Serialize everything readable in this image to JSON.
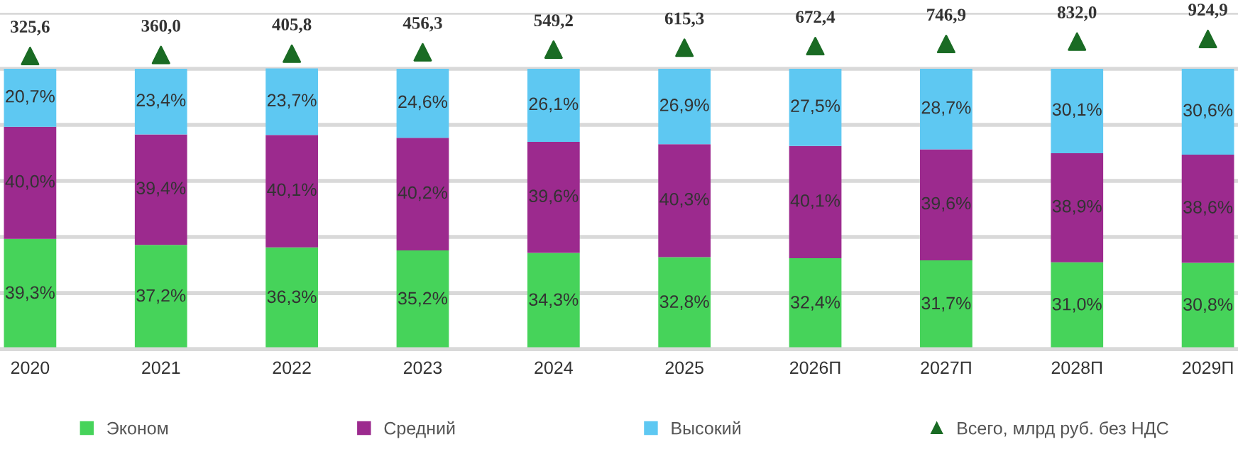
{
  "chart_data": {
    "type": "bar",
    "stacked": true,
    "categories": [
      "2020",
      "2021",
      "2022",
      "2023",
      "2024",
      "2025",
      "2026П",
      "2027П",
      "2028П",
      "2029П"
    ],
    "ylim": [
      0,
      120
    ],
    "yticks": [
      {
        "value": 0,
        "label": null
      },
      {
        "value": 20,
        "label": null
      },
      {
        "value": 40,
        "label": null
      },
      {
        "value": 60,
        "label": null
      },
      {
        "value": 80,
        "label": null
      },
      {
        "value": 100,
        "label": null
      },
      {
        "value": 120,
        "label": null
      }
    ],
    "y2lim": [
      -10000,
      1850
    ],
    "tick_labels": "x",
    "grid": "y",
    "legend": "bottom",
    "series": [
      {
        "name": "Эконом",
        "color": "#46d35a",
        "values": [
          39.3,
          37.2,
          36.3,
          35.2,
          34.3,
          32.8,
          32.4,
          31.7,
          31.0,
          30.8
        ],
        "value_labels": [
          "39,3%",
          "37,2%",
          "36,3%",
          "35,2%",
          "34,3%",
          "32,8%",
          "32,4%",
          "31,7%",
          "31,0%",
          "30,8%"
        ]
      },
      {
        "name": "Средний",
        "color": "#9c2a8e",
        "values": [
          40.0,
          39.4,
          40.1,
          40.2,
          39.6,
          40.3,
          40.1,
          39.6,
          38.9,
          38.6
        ],
        "value_labels": [
          "40,0%",
          "39,4%",
          "40,1%",
          "40,2%",
          "39,6%",
          "40,3%",
          "40,1%",
          "39,6%",
          "38,9%",
          "38,6%"
        ]
      },
      {
        "name": "Высокий",
        "color": "#5ec8f2",
        "values": [
          20.7,
          23.4,
          23.7,
          24.6,
          26.1,
          26.9,
          27.5,
          28.7,
          30.1,
          30.6
        ],
        "value_labels": [
          "20,7%",
          "23,4%",
          "23,7%",
          "24,6%",
          "26,1%",
          "26,9%",
          "27,5%",
          "28,7%",
          "30,1%",
          "30,6%"
        ]
      },
      {
        "name": "Всего, млрд руб. без НДС",
        "type": "scatter",
        "axis": "y2",
        "marker": "triangle",
        "color": "#1a6b24",
        "values": [
          325.6,
          360.0,
          405.8,
          456.3,
          549.2,
          615.3,
          672.4,
          746.9,
          832.0,
          924.9
        ],
        "value_labels": [
          "325,6",
          "360,0",
          "405,8",
          "456,3",
          "549,2",
          "615,3",
          "672,4",
          "746,9",
          "832,0",
          "924,9"
        ]
      }
    ]
  }
}
